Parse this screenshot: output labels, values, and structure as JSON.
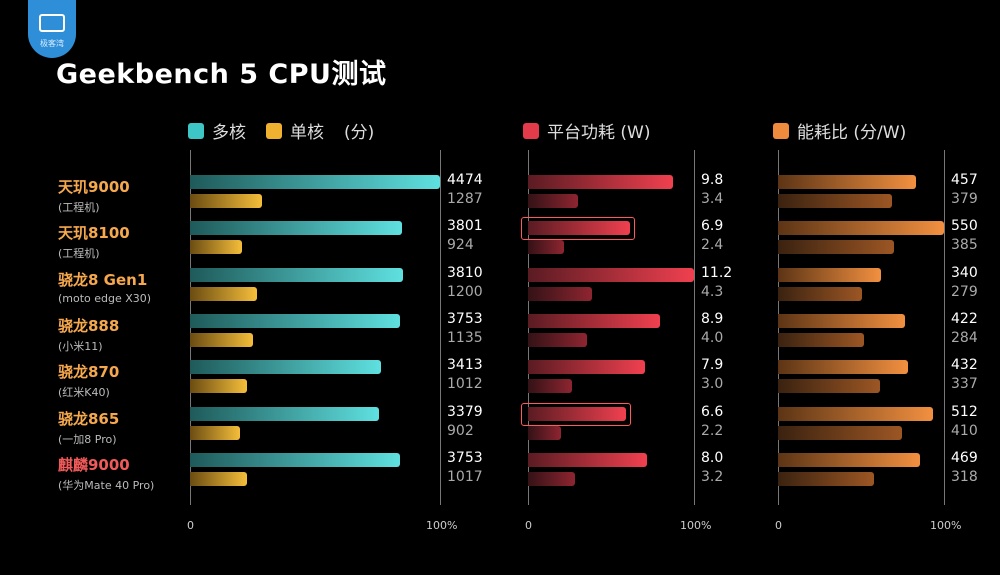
{
  "logo": {
    "text": "极客湾",
    "icon": "camera-icon"
  },
  "title": "Geekbench 5 CPU测试",
  "legends": {
    "perf": [
      {
        "label": "多核",
        "color": "#3ec5c5"
      },
      {
        "label": "单核",
        "color": "#f0b030"
      },
      {
        "label": "(分)",
        "color": ""
      }
    ],
    "power": [
      {
        "label": "平台功耗 (W)",
        "color": "#e33b4a"
      }
    ],
    "eff": [
      {
        "label": "能耗比 (分/W)",
        "color": "#f08a3c"
      }
    ]
  },
  "ticks": {
    "zero": "0",
    "full": "100%"
  },
  "chart_data": {
    "type": "bar",
    "categories": [
      {
        "name": "天玑9000",
        "sub": "(工程机)",
        "highlight": false
      },
      {
        "name": "天玑8100",
        "sub": "(工程机)",
        "highlight": true
      },
      {
        "name": "骁龙8 Gen1",
        "sub": "(moto edge X30)",
        "highlight": false
      },
      {
        "name": "骁龙888",
        "sub": "(小米11)",
        "highlight": false
      },
      {
        "name": "骁龙870",
        "sub": "(红米K40)",
        "highlight": false
      },
      {
        "name": "骁龙865",
        "sub": "(一加8 Pro)",
        "highlight": true
      },
      {
        "name": "麒麟9000",
        "sub": "(华为Mate 40 Pro)",
        "highlight": false
      }
    ],
    "panels": [
      {
        "name": "perf",
        "max": 4474,
        "series": [
          {
            "name": "多核",
            "values": [
              4474,
              3801,
              3810,
              3753,
              3413,
              3379,
              3753
            ],
            "labels": [
              "4474",
              "3801",
              "3810",
              "3753",
              "3413",
              "3379",
              "3753"
            ]
          },
          {
            "name": "单核",
            "values": [
              1287,
              924,
              1200,
              1135,
              1012,
              902,
              1017
            ],
            "labels": [
              "1287",
              "924",
              "1200",
              "1135",
              "1012",
              "902",
              "1017"
            ]
          }
        ]
      },
      {
        "name": "power",
        "max": 11.2,
        "series": [
          {
            "name": "多核",
            "values": [
              9.8,
              6.9,
              11.2,
              8.9,
              7.9,
              6.6,
              8.0
            ],
            "labels": [
              "9.8",
              "6.9",
              "11.2",
              "8.9",
              "7.9",
              "6.6",
              "8.0"
            ]
          },
          {
            "name": "单核",
            "values": [
              3.4,
              2.4,
              4.3,
              4.0,
              3.0,
              2.2,
              3.2
            ],
            "labels": [
              "3.4",
              "2.4",
              "4.3",
              "4.0",
              "3.0",
              "2.2",
              "3.2"
            ]
          }
        ]
      },
      {
        "name": "eff",
        "max": 550,
        "series": [
          {
            "name": "多核",
            "values": [
              457,
              550,
              340,
              422,
              432,
              512,
              469
            ],
            "labels": [
              "457",
              "550",
              "340",
              "422",
              "432",
              "512",
              "469"
            ]
          },
          {
            "name": "单核",
            "values": [
              379,
              385,
              279,
              284,
              337,
              410,
              318
            ],
            "labels": [
              "379",
              "385",
              "279",
              "284",
              "337",
              "410",
              "318"
            ]
          }
        ]
      }
    ]
  }
}
